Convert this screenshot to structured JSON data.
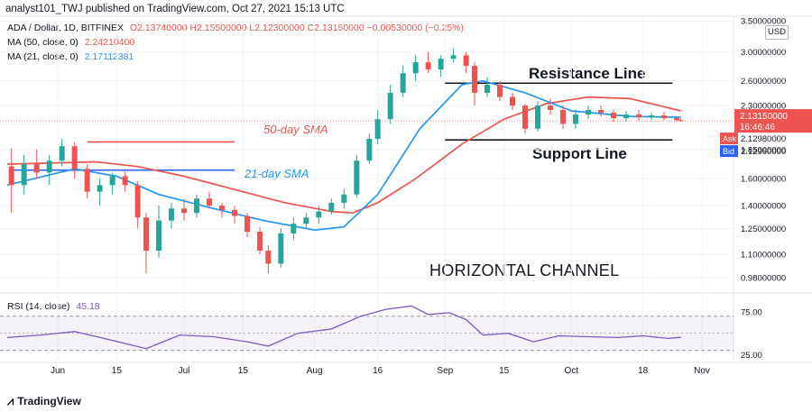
{
  "header": {
    "published": "analyst101_TWJ published on TradingView.com, Oct 27, 2021 15:13 UTC"
  },
  "legend": {
    "symbol": "ADA / Dollar, 1D, BITFINEX",
    "ohlc": "O2.13740000  H2.15500000  L2.12300000  C2.13150000  −0.00530000 (−0.25%)",
    "ma50_label": "MA (50, close, 0)",
    "ma50_value": "2.24210400",
    "ma21_label": "MA (21, close, 0)",
    "ma21_value": "2.17112381"
  },
  "rsi_legend": {
    "label": "RSI (14, close)",
    "value": "45.18"
  },
  "annotations": {
    "resistance": "Resistance Line",
    "support": "Support Line",
    "sma50": "50-day SMA",
    "sma21": "21-day SMA",
    "channel": "HORIZONTAL CHANNEL"
  },
  "price_tags": {
    "last": "2.13150000",
    "countdown": "16:46:46",
    "ask_label": "Ask",
    "ask": "2.12980000",
    "bid_label": "Bid",
    "bid": "2.12960000"
  },
  "currency": "USD",
  "footer": {
    "brand": "TradingView"
  },
  "colors": {
    "up": "#26a69a",
    "down": "#ef5350",
    "ma50": "#ef5350",
    "ma21": "#2196f3",
    "rsi": "#7e57c2",
    "ask": "#ef5350",
    "bid": "#2962ff",
    "grid": "#f0f3fa",
    "text": "#131722"
  },
  "chart_data": {
    "type": "candlestick",
    "price_axis": {
      "scale": "log",
      "range": [
        0.92,
        3.55
      ],
      "tick_values": [
        0.98,
        1.1,
        1.25,
        1.4,
        1.6,
        1.85,
        2.1,
        2.3,
        2.6,
        3.0,
        3.5
      ],
      "tick_labels": [
        "0.98000000",
        "1.10000000",
        "1.25000000",
        "1.40000000",
        "1.60000000",
        "1.85000000",
        "2.10000000",
        "2.30000000",
        "2.60000000",
        "3.00000000",
        "3.50000000"
      ]
    },
    "x_ticks": [
      {
        "date": "2021-06-01",
        "label": "Jun"
      },
      {
        "date": "2021-06-15",
        "label": "15"
      },
      {
        "date": "2021-07-01",
        "label": "Jul"
      },
      {
        "date": "2021-07-15",
        "label": "15"
      },
      {
        "date": "2021-08-01",
        "label": "Aug"
      },
      {
        "date": "2021-08-16",
        "label": "16"
      },
      {
        "date": "2021-09-01",
        "label": "Sep"
      },
      {
        "date": "2021-09-15",
        "label": "15"
      },
      {
        "date": "2021-10-01",
        "label": "Oct"
      },
      {
        "date": "2021-10-18",
        "label": "18"
      },
      {
        "date": "2021-11-01",
        "label": "Nov"
      }
    ],
    "date_range": [
      "2021-05-20",
      "2021-11-07"
    ],
    "series": [
      {
        "name": "ADA / Dollar",
        "candles": [
          {
            "date": "2021-05-21",
            "o": 1.7,
            "h": 1.86,
            "l": 1.35,
            "c": 1.55
          },
          {
            "date": "2021-05-24",
            "o": 1.55,
            "h": 1.8,
            "l": 1.48,
            "c": 1.72
          },
          {
            "date": "2021-05-27",
            "o": 1.72,
            "h": 1.85,
            "l": 1.6,
            "c": 1.65
          },
          {
            "date": "2021-05-30",
            "o": 1.65,
            "h": 1.8,
            "l": 1.55,
            "c": 1.75
          },
          {
            "date": "2021-06-02",
            "o": 1.75,
            "h": 1.95,
            "l": 1.7,
            "c": 1.88
          },
          {
            "date": "2021-06-05",
            "o": 1.88,
            "h": 1.92,
            "l": 1.6,
            "c": 1.68
          },
          {
            "date": "2021-06-08",
            "o": 1.68,
            "h": 1.72,
            "l": 1.45,
            "c": 1.5
          },
          {
            "date": "2021-06-11",
            "o": 1.5,
            "h": 1.6,
            "l": 1.4,
            "c": 1.55
          },
          {
            "date": "2021-06-14",
            "o": 1.55,
            "h": 1.65,
            "l": 1.48,
            "c": 1.62
          },
          {
            "date": "2021-06-17",
            "o": 1.62,
            "h": 1.66,
            "l": 1.5,
            "c": 1.55
          },
          {
            "date": "2021-06-20",
            "o": 1.55,
            "h": 1.58,
            "l": 1.25,
            "c": 1.32
          },
          {
            "date": "2021-06-22",
            "o": 1.32,
            "h": 1.35,
            "l": 1.0,
            "c": 1.12
          },
          {
            "date": "2021-06-25",
            "o": 1.12,
            "h": 1.4,
            "l": 1.08,
            "c": 1.3
          },
          {
            "date": "2021-06-28",
            "o": 1.3,
            "h": 1.42,
            "l": 1.25,
            "c": 1.38
          },
          {
            "date": "2021-07-01",
            "o": 1.38,
            "h": 1.45,
            "l": 1.3,
            "c": 1.35
          },
          {
            "date": "2021-07-04",
            "o": 1.35,
            "h": 1.48,
            "l": 1.32,
            "c": 1.45
          },
          {
            "date": "2021-07-07",
            "o": 1.45,
            "h": 1.5,
            "l": 1.38,
            "c": 1.4
          },
          {
            "date": "2021-07-10",
            "o": 1.4,
            "h": 1.42,
            "l": 1.32,
            "c": 1.37
          },
          {
            "date": "2021-07-13",
            "o": 1.37,
            "h": 1.4,
            "l": 1.28,
            "c": 1.33
          },
          {
            "date": "2021-07-16",
            "o": 1.33,
            "h": 1.35,
            "l": 1.2,
            "c": 1.23
          },
          {
            "date": "2021-07-19",
            "o": 1.23,
            "h": 1.26,
            "l": 1.1,
            "c": 1.12
          },
          {
            "date": "2021-07-21",
            "o": 1.12,
            "h": 1.15,
            "l": 1.0,
            "c": 1.05
          },
          {
            "date": "2021-07-24",
            "o": 1.05,
            "h": 1.25,
            "l": 1.03,
            "c": 1.22
          },
          {
            "date": "2021-07-27",
            "o": 1.22,
            "h": 1.32,
            "l": 1.18,
            "c": 1.28
          },
          {
            "date": "2021-07-30",
            "o": 1.28,
            "h": 1.35,
            "l": 1.25,
            "c": 1.32
          },
          {
            "date": "2021-08-02",
            "o": 1.32,
            "h": 1.4,
            "l": 1.28,
            "c": 1.36
          },
          {
            "date": "2021-08-05",
            "o": 1.36,
            "h": 1.45,
            "l": 1.34,
            "c": 1.42
          },
          {
            "date": "2021-08-08",
            "o": 1.42,
            "h": 1.52,
            "l": 1.38,
            "c": 1.48
          },
          {
            "date": "2021-08-11",
            "o": 1.48,
            "h": 1.8,
            "l": 1.46,
            "c": 1.75
          },
          {
            "date": "2021-08-14",
            "o": 1.75,
            "h": 2.0,
            "l": 1.72,
            "c": 1.95
          },
          {
            "date": "2021-08-16",
            "o": 1.95,
            "h": 2.25,
            "l": 1.9,
            "c": 2.15
          },
          {
            "date": "2021-08-19",
            "o": 2.15,
            "h": 2.55,
            "l": 2.1,
            "c": 2.45
          },
          {
            "date": "2021-08-22",
            "o": 2.45,
            "h": 2.8,
            "l": 2.4,
            "c": 2.7
          },
          {
            "date": "2021-08-25",
            "o": 2.7,
            "h": 2.95,
            "l": 2.6,
            "c": 2.85
          },
          {
            "date": "2021-08-28",
            "o": 2.85,
            "h": 3.0,
            "l": 2.7,
            "c": 2.75
          },
          {
            "date": "2021-08-31",
            "o": 2.75,
            "h": 2.95,
            "l": 2.65,
            "c": 2.9
          },
          {
            "date": "2021-09-03",
            "o": 2.9,
            "h": 3.05,
            "l": 2.85,
            "c": 2.95
          },
          {
            "date": "2021-09-06",
            "o": 2.95,
            "h": 3.0,
            "l": 2.7,
            "c": 2.8
          },
          {
            "date": "2021-09-08",
            "o": 2.8,
            "h": 2.85,
            "l": 2.3,
            "c": 2.45
          },
          {
            "date": "2021-09-11",
            "o": 2.45,
            "h": 2.65,
            "l": 2.4,
            "c": 2.55
          },
          {
            "date": "2021-09-14",
            "o": 2.55,
            "h": 2.6,
            "l": 2.35,
            "c": 2.4
          },
          {
            "date": "2021-09-17",
            "o": 2.4,
            "h": 2.45,
            "l": 2.25,
            "c": 2.3
          },
          {
            "date": "2021-09-20",
            "o": 2.3,
            "h": 2.32,
            "l": 2.0,
            "c": 2.05
          },
          {
            "date": "2021-09-23",
            "o": 2.05,
            "h": 2.35,
            "l": 2.02,
            "c": 2.3
          },
          {
            "date": "2021-09-26",
            "o": 2.3,
            "h": 2.38,
            "l": 2.2,
            "c": 2.25
          },
          {
            "date": "2021-09-29",
            "o": 2.25,
            "h": 2.3,
            "l": 2.05,
            "c": 2.1
          },
          {
            "date": "2021-10-02",
            "o": 2.1,
            "h": 2.25,
            "l": 2.05,
            "c": 2.2
          },
          {
            "date": "2021-10-05",
            "o": 2.2,
            "h": 2.3,
            "l": 2.15,
            "c": 2.25
          },
          {
            "date": "2021-10-08",
            "o": 2.25,
            "h": 2.3,
            "l": 2.18,
            "c": 2.22
          },
          {
            "date": "2021-10-11",
            "o": 2.22,
            "h": 2.25,
            "l": 2.12,
            "c": 2.16
          },
          {
            "date": "2021-10-14",
            "o": 2.16,
            "h": 2.24,
            "l": 2.12,
            "c": 2.2
          },
          {
            "date": "2021-10-17",
            "o": 2.2,
            "h": 2.25,
            "l": 2.13,
            "c": 2.17
          },
          {
            "date": "2021-10-20",
            "o": 2.17,
            "h": 2.22,
            "l": 2.14,
            "c": 2.19
          },
          {
            "date": "2021-10-23",
            "o": 2.19,
            "h": 2.23,
            "l": 2.14,
            "c": 2.16
          },
          {
            "date": "2021-10-26",
            "o": 2.16,
            "h": 2.18,
            "l": 2.12,
            "c": 2.14
          },
          {
            "date": "2021-10-27",
            "o": 2.1374,
            "h": 2.155,
            "l": 2.123,
            "c": 2.1315
          }
        ]
      },
      {
        "name": "MA (50, close, 0)",
        "points": [
          {
            "date": "2021-05-20",
            "v": 1.72
          },
          {
            "date": "2021-06-10",
            "v": 1.74
          },
          {
            "date": "2021-06-20",
            "v": 1.7
          },
          {
            "date": "2021-07-01",
            "v": 1.62
          },
          {
            "date": "2021-07-15",
            "v": 1.5
          },
          {
            "date": "2021-07-25",
            "v": 1.42
          },
          {
            "date": "2021-08-05",
            "v": 1.36
          },
          {
            "date": "2021-08-10",
            "v": 1.35
          },
          {
            "date": "2021-08-16",
            "v": 1.42
          },
          {
            "date": "2021-08-25",
            "v": 1.6
          },
          {
            "date": "2021-09-05",
            "v": 1.9
          },
          {
            "date": "2021-09-15",
            "v": 2.15
          },
          {
            "date": "2021-09-25",
            "v": 2.32
          },
          {
            "date": "2021-10-05",
            "v": 2.4
          },
          {
            "date": "2021-10-15",
            "v": 2.38
          },
          {
            "date": "2021-10-27",
            "v": 2.24
          }
        ]
      },
      {
        "name": "MA (21, close, 0)",
        "points": [
          {
            "date": "2021-05-20",
            "v": 1.55
          },
          {
            "date": "2021-06-05",
            "v": 1.68
          },
          {
            "date": "2021-06-15",
            "v": 1.62
          },
          {
            "date": "2021-06-25",
            "v": 1.48
          },
          {
            "date": "2021-07-08",
            "v": 1.38
          },
          {
            "date": "2021-07-20",
            "v": 1.3
          },
          {
            "date": "2021-08-01",
            "v": 1.24
          },
          {
            "date": "2021-08-08",
            "v": 1.26
          },
          {
            "date": "2021-08-16",
            "v": 1.48
          },
          {
            "date": "2021-08-26",
            "v": 2.05
          },
          {
            "date": "2021-09-05",
            "v": 2.55
          },
          {
            "date": "2021-09-10",
            "v": 2.6
          },
          {
            "date": "2021-09-20",
            "v": 2.45
          },
          {
            "date": "2021-10-01",
            "v": 2.24
          },
          {
            "date": "2021-10-15",
            "v": 2.18
          },
          {
            "date": "2021-10-27",
            "v": 2.17
          }
        ]
      }
    ],
    "lines": [
      {
        "role": "resistance",
        "from": {
          "date": "2021-09-01",
          "v": 2.57
        },
        "to": {
          "date": "2021-10-25",
          "v": 2.57
        }
      },
      {
        "role": "support",
        "from": {
          "date": "2021-09-01",
          "v": 1.94
        },
        "to": {
          "date": "2021-10-25",
          "v": 1.94
        }
      },
      {
        "role": "50-day SMA marker",
        "from": {
          "date": "2021-06-08",
          "v": 1.92
        },
        "to": {
          "date": "2021-07-13",
          "v": 1.92
        }
      },
      {
        "role": "21-day SMA marker",
        "from": {
          "date": "2021-05-21",
          "v": 1.67
        },
        "to": {
          "date": "2021-07-13",
          "v": 1.67
        }
      }
    ],
    "rsi": {
      "name": "RSI (14, close)",
      "range": [
        18,
        95
      ],
      "tick_values": [
        25,
        75
      ],
      "tick_labels": [
        "25.00",
        "75.00"
      ],
      "band": [
        30,
        70
      ],
      "points": [
        {
          "date": "2021-05-20",
          "v": 45
        },
        {
          "date": "2021-05-28",
          "v": 48
        },
        {
          "date": "2021-06-05",
          "v": 52
        },
        {
          "date": "2021-06-12",
          "v": 44
        },
        {
          "date": "2021-06-22",
          "v": 32
        },
        {
          "date": "2021-06-30",
          "v": 48
        },
        {
          "date": "2021-07-08",
          "v": 46
        },
        {
          "date": "2021-07-16",
          "v": 40
        },
        {
          "date": "2021-07-21",
          "v": 35
        },
        {
          "date": "2021-07-28",
          "v": 50
        },
        {
          "date": "2021-08-05",
          "v": 55
        },
        {
          "date": "2021-08-12",
          "v": 70
        },
        {
          "date": "2021-08-18",
          "v": 78
        },
        {
          "date": "2021-08-24",
          "v": 82
        },
        {
          "date": "2021-08-28",
          "v": 72
        },
        {
          "date": "2021-09-02",
          "v": 74
        },
        {
          "date": "2021-09-06",
          "v": 66
        },
        {
          "date": "2021-09-10",
          "v": 48
        },
        {
          "date": "2021-09-16",
          "v": 50
        },
        {
          "date": "2021-09-22",
          "v": 40
        },
        {
          "date": "2021-09-28",
          "v": 47
        },
        {
          "date": "2021-10-05",
          "v": 46
        },
        {
          "date": "2021-10-12",
          "v": 45
        },
        {
          "date": "2021-10-18",
          "v": 47
        },
        {
          "date": "2021-10-24",
          "v": 44
        },
        {
          "date": "2021-10-27",
          "v": 45.18
        }
      ]
    }
  }
}
